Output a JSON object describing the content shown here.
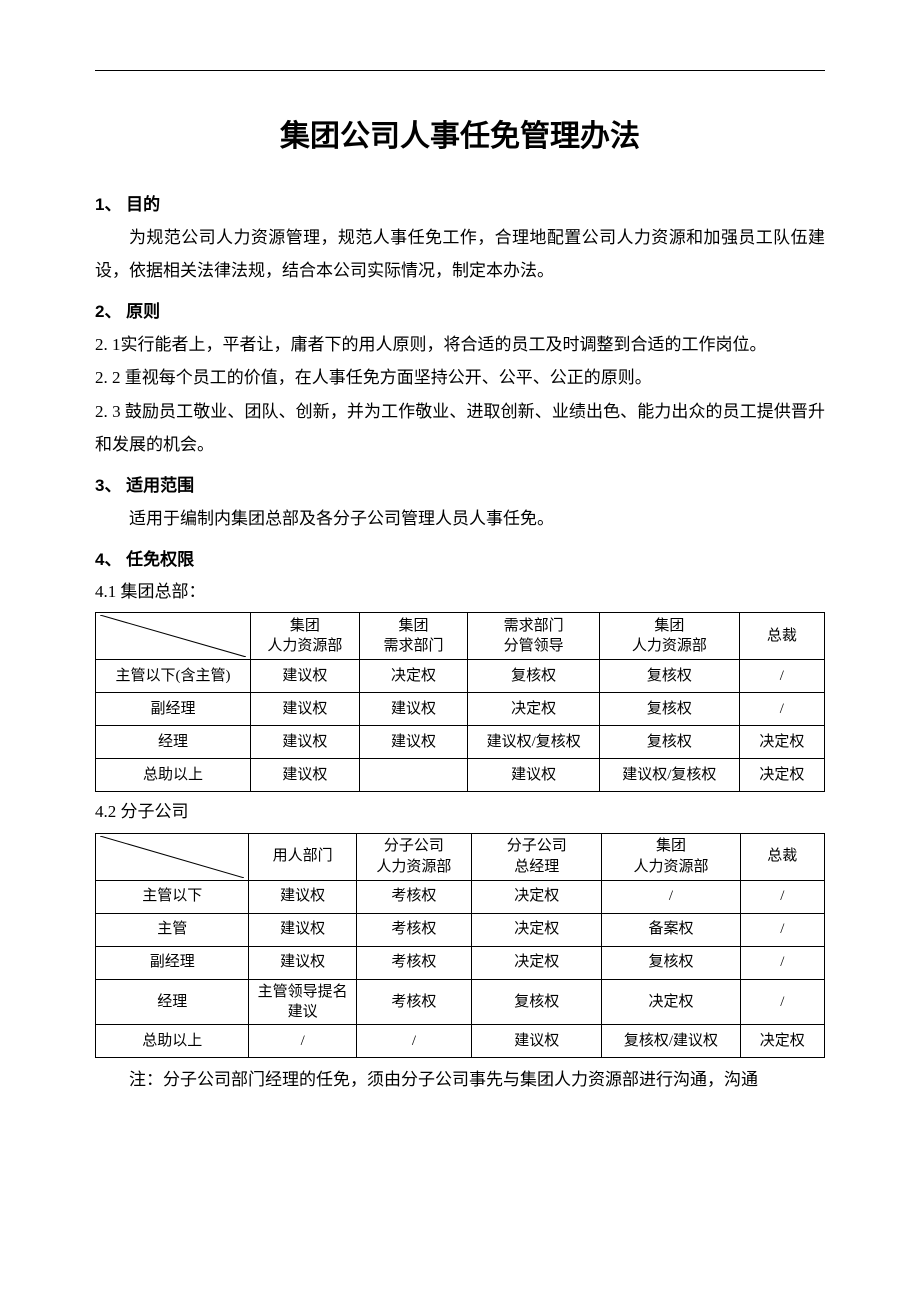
{
  "title": "集团公司人事任免管理办法",
  "sections": {
    "s1": {
      "head": "1、  目的",
      "p1": "为规范公司人力资源管理，规范人事任免工作，合理地配置公司人力资源和加强员工队伍建设，依据相关法律法规，结合本公司实际情况，制定本办法。"
    },
    "s2": {
      "head": "2、  原则",
      "p1": "2. 1实行能者上，平者让，庸者下的用人原则，将合适的员工及时调整到合适的工作岗位。",
      "p2": "2. 2 重视每个员工的价值，在人事任免方面坚持公开、公平、公正的原则。",
      "p3": "2. 3 鼓励员工敬业、团队、创新，并为工作敬业、进取创新、业绩出色、能力出众的员工提供晋升和发展的机会。"
    },
    "s3": {
      "head": "3、  适用范围",
      "p1": "适用于编制内集团总部及各分子公司管理人员人事任免。"
    },
    "s4": {
      "head": "4、  任免权限",
      "t1_label": "4.1  集团总部：",
      "t2_label": "4.2  分子公司"
    }
  },
  "table1": {
    "headers": [
      "",
      "集团\n人力资源部",
      "集团\n需求部门",
      "需求部门\n分管领导",
      "集团\n人力资源部",
      "总裁"
    ],
    "rows": [
      [
        "主管以下(含主管)",
        "建议权",
        "决定权",
        "复核权",
        "复核权",
        "/"
      ],
      [
        "副经理",
        "建议权",
        "建议权",
        "决定权",
        "复核权",
        "/"
      ],
      [
        "经理",
        "建议权",
        "建议权",
        "建议权/复核权",
        "复核权",
        "决定权"
      ],
      [
        "总助以上",
        "建议权",
        "",
        "建议权",
        "建议权/复核权",
        "决定权"
      ]
    ]
  },
  "table2": {
    "headers": [
      "",
      "用人部门",
      "分子公司\n人力资源部",
      "分子公司\n总经理",
      "集团\n人力资源部",
      "总裁"
    ],
    "rows": [
      [
        "主管以下",
        "建议权",
        "考核权",
        "决定权",
        "/",
        "/"
      ],
      [
        "主管",
        "建议权",
        "考核权",
        "决定权",
        "备案权",
        "/"
      ],
      [
        "副经理",
        "建议权",
        "考核权",
        "决定权",
        "复核权",
        "/"
      ],
      [
        "经理",
        "主管领导提名建议",
        "考核权",
        "复核权",
        "决定权",
        "/"
      ],
      [
        "总助以上",
        "/",
        "/",
        "建议权",
        "复核权/建议权",
        "决定权"
      ]
    ]
  },
  "note": "注：分子公司部门经理的任免，须由分子公司事先与集团人力资源部进行沟通，沟通"
}
